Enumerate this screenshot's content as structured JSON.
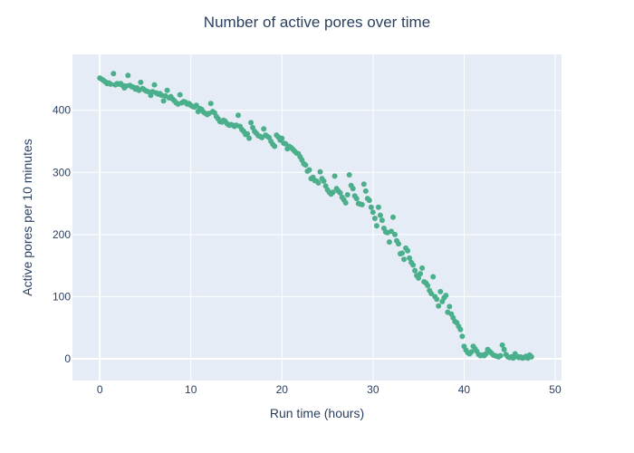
{
  "chart_data": {
    "type": "scatter",
    "title": "Number of active pores over time",
    "xlabel": "Run time (hours)",
    "ylabel": "Active pores per 10 minutes",
    "xlim": [
      -3,
      50.7
    ],
    "ylim": [
      -35,
      490
    ],
    "xticks": [
      0,
      10,
      20,
      30,
      40,
      50
    ],
    "yticks": [
      0,
      100,
      200,
      300,
      400
    ],
    "grid": true,
    "background": "#E5ECF6",
    "marker_color": "#4BAF8C",
    "series": [
      {
        "points": [
          [
            0,
            452
          ],
          [
            0.2,
            450
          ],
          [
            0.4,
            448
          ],
          [
            0.6,
            446
          ],
          [
            0.8,
            443
          ],
          [
            1.0,
            444
          ],
          [
            1.2,
            442
          ],
          [
            1.5,
            459
          ],
          [
            1.7,
            441
          ],
          [
            1.9,
            443
          ],
          [
            2.1,
            442
          ],
          [
            2.3,
            443
          ],
          [
            2.5,
            440
          ],
          [
            2.7,
            436
          ],
          [
            2.9,
            439
          ],
          [
            3.1,
            456
          ],
          [
            3.3,
            440
          ],
          [
            3.5,
            438
          ],
          [
            3.7,
            437
          ],
          [
            3.9,
            434
          ],
          [
            4.1,
            436
          ],
          [
            4.3,
            432
          ],
          [
            4.5,
            445
          ],
          [
            4.7,
            435
          ],
          [
            4.9,
            433
          ],
          [
            5.1,
            431
          ],
          [
            5.3,
            430
          ],
          [
            5.6,
            424
          ],
          [
            5.8,
            430
          ],
          [
            6.0,
            441
          ],
          [
            6.2,
            428
          ],
          [
            6.4,
            426
          ],
          [
            6.6,
            427
          ],
          [
            6.8,
            424
          ],
          [
            7.0,
            415
          ],
          [
            7.2,
            423
          ],
          [
            7.4,
            432
          ],
          [
            7.6,
            420
          ],
          [
            7.8,
            422
          ],
          [
            8.0,
            418
          ],
          [
            8.2,
            415
          ],
          [
            8.4,
            412
          ],
          [
            8.6,
            410
          ],
          [
            8.8,
            425
          ],
          [
            9.0,
            412
          ],
          [
            9.2,
            414
          ],
          [
            9.4,
            413
          ],
          [
            9.6,
            410
          ],
          [
            9.8,
            411
          ],
          [
            10.0,
            408
          ],
          [
            10.2,
            406
          ],
          [
            10.4,
            405
          ],
          [
            10.6,
            408
          ],
          [
            10.8,
            398
          ],
          [
            11.0,
            403
          ],
          [
            11.2,
            401
          ],
          [
            11.4,
            397
          ],
          [
            11.6,
            395
          ],
          [
            11.8,
            393
          ],
          [
            12.0,
            395
          ],
          [
            12.2,
            411
          ],
          [
            12.4,
            398
          ],
          [
            12.6,
            396
          ],
          [
            12.8,
            390
          ],
          [
            13.0,
            386
          ],
          [
            13.2,
            382
          ],
          [
            13.4,
            381
          ],
          [
            13.6,
            384
          ],
          [
            13.8,
            382
          ],
          [
            14.0,
            378
          ],
          [
            14.2,
            376
          ],
          [
            14.4,
            377
          ],
          [
            14.6,
            376
          ],
          [
            14.8,
            374
          ],
          [
            15.0,
            376
          ],
          [
            15.2,
            392
          ],
          [
            15.4,
            374
          ],
          [
            15.6,
            369
          ],
          [
            15.8,
            366
          ],
          [
            16.0,
            361
          ],
          [
            16.2,
            362
          ],
          [
            16.4,
            355
          ],
          [
            16.6,
            380
          ],
          [
            16.8,
            372
          ],
          [
            17.0,
            366
          ],
          [
            17.2,
            363
          ],
          [
            17.4,
            359
          ],
          [
            17.6,
            358
          ],
          [
            17.8,
            356
          ],
          [
            18.0,
            370
          ],
          [
            18.2,
            360
          ],
          [
            18.4,
            358
          ],
          [
            18.6,
            356
          ],
          [
            18.8,
            350
          ],
          [
            19.0,
            345
          ],
          [
            19.2,
            342
          ],
          [
            19.4,
            360
          ],
          [
            19.6,
            357
          ],
          [
            19.8,
            352
          ],
          [
            20.0,
            355
          ],
          [
            20.2,
            347
          ],
          [
            20.4,
            346
          ],
          [
            20.6,
            338
          ],
          [
            20.8,
            342
          ],
          [
            21.0,
            340
          ],
          [
            21.2,
            337
          ],
          [
            21.4,
            334
          ],
          [
            21.6,
            331
          ],
          [
            21.8,
            330
          ],
          [
            22.0,
            325
          ],
          [
            22.2,
            320
          ],
          [
            22.4,
            314
          ],
          [
            22.6,
            312
          ],
          [
            22.8,
            302
          ],
          [
            23.0,
            304
          ],
          [
            23.2,
            290
          ],
          [
            23.4,
            292
          ],
          [
            23.6,
            287
          ],
          [
            23.8,
            286
          ],
          [
            24.0,
            283
          ],
          [
            24.2,
            301
          ],
          [
            24.4,
            290
          ],
          [
            24.6,
            286
          ],
          [
            24.8,
            278
          ],
          [
            25.0,
            272
          ],
          [
            25.2,
            268
          ],
          [
            25.4,
            265
          ],
          [
            25.6,
            268
          ],
          [
            25.8,
            294
          ],
          [
            26.0,
            274
          ],
          [
            26.2,
            270
          ],
          [
            26.4,
            267
          ],
          [
            26.6,
            260
          ],
          [
            26.8,
            256
          ],
          [
            27.0,
            251
          ],
          [
            27.2,
            264
          ],
          [
            27.4,
            296
          ],
          [
            27.6,
            279
          ],
          [
            27.8,
            274
          ],
          [
            28.0,
            262
          ],
          [
            28.2,
            258
          ],
          [
            28.4,
            250
          ],
          [
            28.6,
            249
          ],
          [
            28.8,
            248
          ],
          [
            29.0,
            281
          ],
          [
            29.2,
            270
          ],
          [
            29.4,
            258
          ],
          [
            29.6,
            255
          ],
          [
            29.8,
            244
          ],
          [
            30.0,
            236
          ],
          [
            30.2,
            226
          ],
          [
            30.4,
            214
          ],
          [
            30.6,
            244
          ],
          [
            30.8,
            231
          ],
          [
            31.0,
            223
          ],
          [
            31.2,
            210
          ],
          [
            31.4,
            204
          ],
          [
            31.6,
            203
          ],
          [
            31.8,
            188
          ],
          [
            32.0,
            205
          ],
          [
            32.2,
            228
          ],
          [
            32.4,
            200
          ],
          [
            32.6,
            190
          ],
          [
            32.8,
            185
          ],
          [
            33.0,
            169
          ],
          [
            33.2,
            170
          ],
          [
            33.4,
            160
          ],
          [
            33.6,
            178
          ],
          [
            33.8,
            174
          ],
          [
            34.0,
            162
          ],
          [
            34.2,
            155
          ],
          [
            34.4,
            151
          ],
          [
            34.6,
            142
          ],
          [
            34.8,
            134
          ],
          [
            35.0,
            130
          ],
          [
            35.2,
            137
          ],
          [
            35.4,
            146
          ],
          [
            35.6,
            124
          ],
          [
            35.8,
            122
          ],
          [
            36.0,
            118
          ],
          [
            36.2,
            110
          ],
          [
            36.4,
            105
          ],
          [
            36.6,
            132
          ],
          [
            36.8,
            100
          ],
          [
            37.0,
            96
          ],
          [
            37.2,
            85
          ],
          [
            37.4,
            108
          ],
          [
            37.6,
            92
          ],
          [
            37.8,
            98
          ],
          [
            38.0,
            102
          ],
          [
            38.2,
            75
          ],
          [
            38.4,
            84
          ],
          [
            38.6,
            72
          ],
          [
            38.8,
            66
          ],
          [
            39.0,
            60
          ],
          [
            39.2,
            58
          ],
          [
            39.4,
            52
          ],
          [
            39.6,
            47
          ],
          [
            39.8,
            36
          ],
          [
            40.0,
            20
          ],
          [
            40.2,
            14
          ],
          [
            40.4,
            10
          ],
          [
            40.6,
            8
          ],
          [
            40.8,
            11
          ],
          [
            41.0,
            20
          ],
          [
            41.2,
            16
          ],
          [
            41.4,
            12
          ],
          [
            41.6,
            7
          ],
          [
            41.8,
            5
          ],
          [
            42.0,
            6
          ],
          [
            42.2,
            5
          ],
          [
            42.4,
            8
          ],
          [
            42.6,
            15
          ],
          [
            42.8,
            12
          ],
          [
            43.0,
            9
          ],
          [
            43.2,
            6
          ],
          [
            43.4,
            5
          ],
          [
            43.6,
            4
          ],
          [
            43.8,
            3
          ],
          [
            44.0,
            5
          ],
          [
            44.2,
            22
          ],
          [
            44.4,
            15
          ],
          [
            44.6,
            7
          ],
          [
            44.8,
            3
          ],
          [
            45.0,
            2
          ],
          [
            45.2,
            3
          ],
          [
            45.4,
            1
          ],
          [
            45.6,
            8
          ],
          [
            45.8,
            4
          ],
          [
            46.0,
            2
          ],
          [
            46.2,
            3
          ],
          [
            46.4,
            1
          ],
          [
            46.6,
            2
          ],
          [
            46.8,
            4
          ],
          [
            47.0,
            1
          ],
          [
            47.2,
            6
          ],
          [
            47.4,
            3
          ]
        ]
      }
    ]
  }
}
